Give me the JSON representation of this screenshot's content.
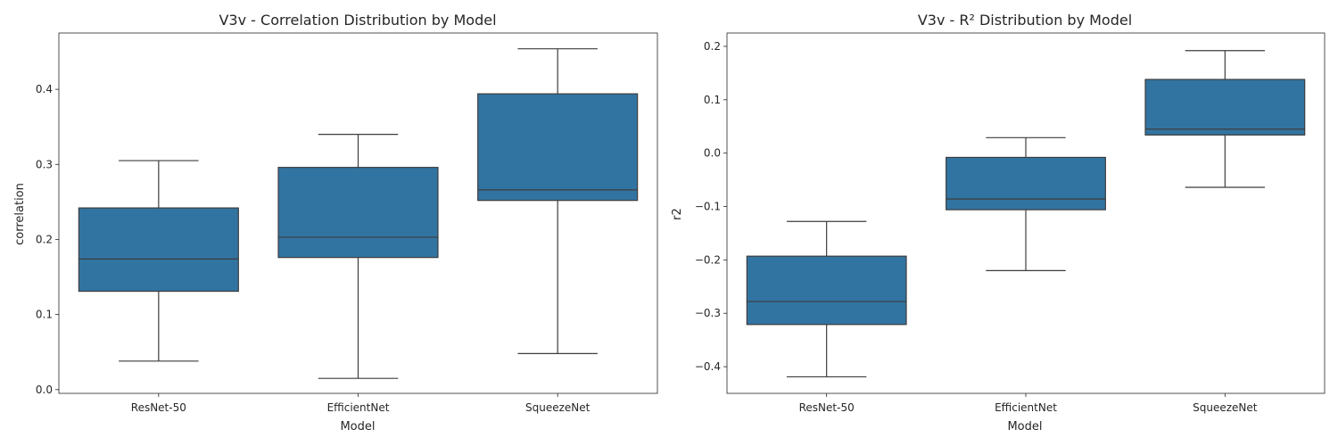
{
  "chart_data": [
    {
      "type": "box",
      "title": "V3v - Correlation Distribution by Model",
      "xlabel": "Model",
      "ylabel": "correlation",
      "categories": [
        "ResNet-50",
        "EfficientNet",
        "SqueezeNet"
      ],
      "ylim": [
        -0.005,
        0.475
      ],
      "yticks": [
        "0.0",
        "0.1",
        "0.2",
        "0.3",
        "0.4"
      ],
      "box_color": "#3274a1",
      "line_color": "#3d3d3d",
      "boxes": [
        {
          "category": "ResNet-50",
          "whisker_low": 0.038,
          "q1": 0.131,
          "median": 0.174,
          "q3": 0.242,
          "whisker_high": 0.305
        },
        {
          "category": "EfficientNet",
          "whisker_low": 0.015,
          "q1": 0.176,
          "median": 0.203,
          "q3": 0.296,
          "whisker_high": 0.34
        },
        {
          "category": "SqueezeNet",
          "whisker_low": 0.048,
          "q1": 0.252,
          "median": 0.266,
          "q3": 0.394,
          "whisker_high": 0.454
        }
      ]
    },
    {
      "type": "box",
      "title": "V3v - R² Distribution by Model",
      "xlabel": "Model",
      "ylabel": "r2",
      "categories": [
        "ResNet-50",
        "EfficientNet",
        "SqueezeNet"
      ],
      "ylim": [
        -0.45,
        0.225
      ],
      "yticks": [
        "−0.4",
        "−0.3",
        "−0.2",
        "−0.1",
        "0.0",
        "0.1",
        "0.2"
      ],
      "box_color": "#3274a1",
      "line_color": "#3d3d3d",
      "boxes": [
        {
          "category": "ResNet-50",
          "whisker_low": -0.419,
          "q1": -0.321,
          "median": -0.278,
          "q3": -0.193,
          "whisker_high": -0.128
        },
        {
          "category": "EfficientNet",
          "whisker_low": -0.22,
          "q1": -0.106,
          "median": -0.086,
          "q3": -0.008,
          "whisker_high": 0.029
        },
        {
          "category": "SqueezeNet",
          "whisker_low": -0.064,
          "q1": 0.034,
          "median": 0.045,
          "q3": 0.138,
          "whisker_high": 0.192
        }
      ]
    }
  ]
}
